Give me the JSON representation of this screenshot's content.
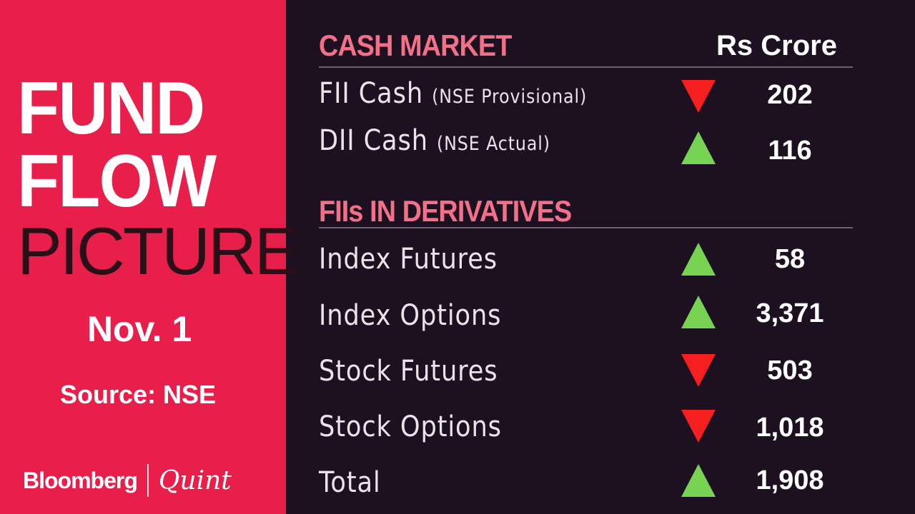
{
  "left": {
    "title_line1": "FUND",
    "title_line2": "FLOW",
    "title_line3": "PICTURE",
    "date": "Nov. 1",
    "source": "Source: NSE",
    "logo_brand": "Bloomberg",
    "logo_partner": "Quint",
    "brand_color": "#e81f4a"
  },
  "cash": {
    "heading": "CASH MARKET",
    "unit": "Rs Crore",
    "rows": [
      {
        "label": "FII Cash",
        "note": "(NSE Provisional)",
        "direction": "down",
        "value": "202"
      },
      {
        "label": "DII Cash",
        "note": "(NSE Actual)",
        "direction": "up",
        "value": "116"
      }
    ]
  },
  "derivatives": {
    "heading": "FIIs IN DERIVATIVES",
    "rows": [
      {
        "label": "Index Futures",
        "direction": "up",
        "value": "58"
      },
      {
        "label": "Index Options",
        "direction": "up",
        "value": "3,371"
      },
      {
        "label": "Stock Futures",
        "direction": "down",
        "value": "503"
      },
      {
        "label": "Stock Options",
        "direction": "down",
        "value": "1,018"
      },
      {
        "label": "Total",
        "direction": "up",
        "value": "1,908"
      }
    ]
  },
  "colors": {
    "up": "#79d352",
    "down": "#f51f1f",
    "heading": "#f27189"
  }
}
